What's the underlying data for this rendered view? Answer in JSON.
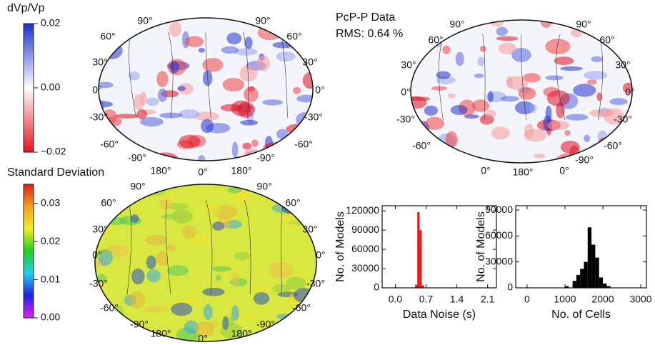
{
  "colorbars": [
    {
      "title": "dVp/Vp",
      "lim": [
        -0.02,
        0.02
      ],
      "ticks": [
        {
          "value": 0.02,
          "label": "0.02"
        },
        {
          "value": 0,
          "label": "0.00"
        },
        {
          "value": -0.02,
          "label": "−0.02"
        }
      ],
      "colors": [
        "#e8101c",
        "#ffffff",
        "#1a2fd0"
      ]
    },
    {
      "title": "Standard Deviation",
      "lim": [
        0,
        0.035
      ],
      "ticks": [
        {
          "value": 0,
          "label": "0.00"
        },
        {
          "value": 0.01,
          "label": "0.01"
        },
        {
          "value": 0.02,
          "label": "0.02"
        },
        {
          "value": 0.03,
          "label": "0.03"
        }
      ],
      "colors": [
        "#e020f0",
        "#2020e0",
        "#20d0f0",
        "#20d020",
        "#f0f020",
        "#f0a020",
        "#e02010"
      ]
    }
  ],
  "annotations": [
    "PcP-P Data",
    "RMS: 0.64 %"
  ],
  "maps": [
    {
      "labels": [
        "90°",
        "90°",
        "60°",
        "30°",
        "0°",
        "-30°",
        "-60°",
        "60°",
        "30°",
        "0°",
        "-30°",
        "-60°",
        "-90°",
        "-90°",
        "180°",
        "0°",
        "180°"
      ]
    },
    {
      "labels": [
        "90°",
        "90°",
        "60°",
        "30°",
        "0°",
        "-30°",
        "-60°",
        "60°",
        "30°",
        "0°",
        "-30°",
        "-60°",
        "-90°",
        "0°",
        "180°",
        "0°"
      ]
    },
    {
      "labels": [
        "90°",
        "90°",
        "60°",
        "30°",
        "0°",
        "-30°",
        "-60°",
        "60°",
        "30°",
        "0°",
        "-30°",
        "-60°",
        "-90°",
        "-90°",
        "180°",
        "0°",
        "180°"
      ]
    }
  ],
  "chart_data": [
    {
      "type": "histogram",
      "xlabel": "Data Noise (s)",
      "ylabel": "No. of Models",
      "color": "#ee1111",
      "bins": [
        0.45,
        0.5,
        0.55,
        0.6,
        0.65
      ],
      "values": [
        5000,
        118000,
        90000,
        4000
      ],
      "xlim": [
        -0.3,
        2.3
      ],
      "ylim": [
        0,
        128000
      ],
      "xticks": [
        {
          "value": 0,
          "label": "0.0"
        },
        0.7,
        1.4,
        2.1
      ],
      "yticks": [
        0,
        30000,
        60000,
        90000,
        120000
      ]
    },
    {
      "type": "histogram",
      "xlabel": "No. of Cells",
      "ylabel": "No. of Models",
      "color": "#000000",
      "bins": [
        1000,
        1100,
        1200,
        1300,
        1400,
        1500,
        1600,
        1700,
        1800,
        1900,
        2000,
        2100,
        2200
      ],
      "values": [
        2000,
        0,
        8000,
        15000,
        22000,
        30000,
        70000,
        50000,
        35000,
        12000,
        5000,
        2000
      ],
      "xlim": [
        -300,
        3150
      ],
      "ylim": [
        0,
        95000
      ],
      "xticks": [
        0,
        1000,
        2000,
        3000
      ],
      "yticks": [
        0,
        30000,
        60000,
        90000
      ]
    }
  ]
}
